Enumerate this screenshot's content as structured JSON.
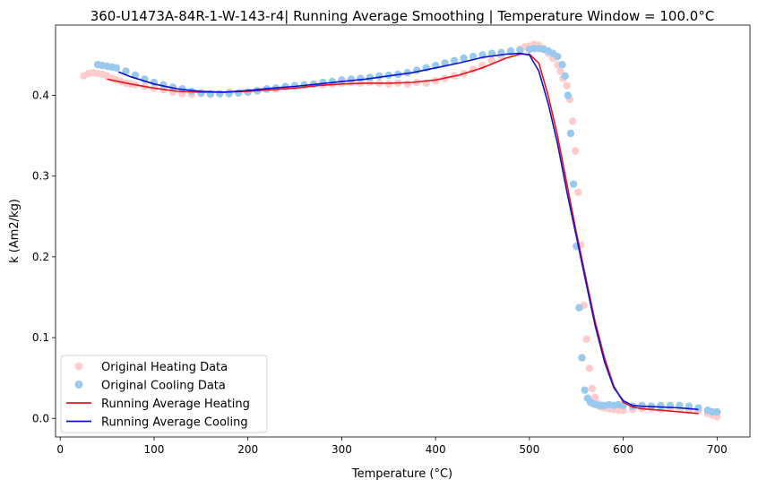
{
  "chart_data": {
    "type": "scatter",
    "title": "360-U1473A-84R-1-W-143-r4| Running Average Smoothing | Temperature Window = 100.0°C",
    "xlabel": "Temperature (°C)",
    "ylabel": "k (Am2/kg)",
    "xlim": [
      -5,
      735
    ],
    "ylim": [
      -0.023,
      0.487
    ],
    "xticks": [
      0,
      100,
      200,
      300,
      400,
      500,
      600,
      700
    ],
    "yticks": [
      0.0,
      0.1,
      0.2,
      0.3,
      0.4
    ],
    "ytick_labels": [
      "0.0",
      "0.1",
      "0.2",
      "0.3",
      "0.4"
    ],
    "grid": false,
    "legend_position": "lower-left",
    "series": [
      {
        "name": "Original Heating Data",
        "kind": "scatter",
        "color": "#ffcccc",
        "x": [
          25,
          30,
          35,
          40,
          45,
          50,
          55,
          60,
          65,
          70,
          75,
          80,
          90,
          100,
          110,
          120,
          130,
          140,
          150,
          160,
          170,
          180,
          190,
          200,
          210,
          220,
          230,
          240,
          250,
          260,
          270,
          280,
          290,
          300,
          310,
          320,
          330,
          340,
          350,
          360,
          370,
          380,
          390,
          400,
          410,
          420,
          430,
          440,
          450,
          460,
          470,
          480,
          490,
          495,
          500,
          505,
          510,
          515,
          520,
          525,
          530,
          533,
          536,
          540,
          543,
          546,
          549,
          552,
          555,
          558,
          561,
          564,
          567,
          570,
          573,
          576,
          580,
          585,
          590,
          595,
          600,
          610,
          620,
          630,
          640,
          650,
          660,
          670,
          680,
          690,
          695,
          700
        ],
        "y": [
          0.424,
          0.427,
          0.428,
          0.427,
          0.426,
          0.424,
          0.421,
          0.419,
          0.417,
          0.415,
          0.414,
          0.413,
          0.411,
          0.409,
          0.407,
          0.404,
          0.402,
          0.401,
          0.402,
          0.401,
          0.402,
          0.404,
          0.403,
          0.404,
          0.405,
          0.407,
          0.408,
          0.41,
          0.411,
          0.412,
          0.414,
          0.413,
          0.414,
          0.415,
          0.416,
          0.415,
          0.416,
          0.415,
          0.414,
          0.415,
          0.414,
          0.416,
          0.415,
          0.418,
          0.421,
          0.424,
          0.427,
          0.432,
          0.437,
          0.443,
          0.448,
          0.453,
          0.457,
          0.46,
          0.461,
          0.463,
          0.462,
          0.458,
          0.452,
          0.446,
          0.438,
          0.43,
          0.421,
          0.412,
          0.395,
          0.368,
          0.331,
          0.28,
          0.215,
          0.14,
          0.098,
          0.062,
          0.037,
          0.026,
          0.018,
          0.014,
          0.013,
          0.012,
          0.011,
          0.01,
          0.01,
          0.011,
          0.012,
          0.012,
          0.011,
          0.012,
          0.011,
          0.01,
          0.009,
          0.006,
          0.004,
          0.002
        ]
      },
      {
        "name": "Original Cooling Data",
        "kind": "scatter",
        "color": "#99c9ef",
        "x": [
          40,
          45,
          50,
          55,
          60,
          70,
          80,
          90,
          100,
          110,
          120,
          130,
          140,
          150,
          160,
          170,
          180,
          190,
          200,
          210,
          220,
          230,
          240,
          250,
          260,
          270,
          280,
          290,
          300,
          310,
          320,
          330,
          340,
          350,
          360,
          370,
          380,
          390,
          400,
          410,
          420,
          430,
          440,
          450,
          460,
          470,
          480,
          490,
          500,
          505,
          510,
          515,
          520,
          525,
          530,
          535,
          538,
          541,
          544,
          547,
          550,
          553,
          556,
          559,
          562,
          565,
          568,
          571,
          574,
          577,
          580,
          585,
          590,
          595,
          600,
          610,
          620,
          630,
          640,
          650,
          660,
          670,
          680,
          690,
          695,
          700
        ],
        "y": [
          0.438,
          0.437,
          0.436,
          0.435,
          0.434,
          0.43,
          0.425,
          0.42,
          0.416,
          0.413,
          0.41,
          0.408,
          0.405,
          0.403,
          0.402,
          0.402,
          0.402,
          0.403,
          0.404,
          0.406,
          0.408,
          0.409,
          0.411,
          0.412,
          0.413,
          0.414,
          0.416,
          0.417,
          0.419,
          0.42,
          0.421,
          0.422,
          0.424,
          0.425,
          0.426,
          0.428,
          0.431,
          0.434,
          0.437,
          0.44,
          0.443,
          0.446,
          0.448,
          0.45,
          0.452,
          0.453,
          0.455,
          0.456,
          0.457,
          0.458,
          0.458,
          0.457,
          0.455,
          0.452,
          0.448,
          0.438,
          0.424,
          0.4,
          0.353,
          0.29,
          0.213,
          0.137,
          0.075,
          0.035,
          0.025,
          0.02,
          0.018,
          0.017,
          0.016,
          0.016,
          0.016,
          0.017,
          0.016,
          0.017,
          0.016,
          0.015,
          0.016,
          0.015,
          0.016,
          0.016,
          0.016,
          0.015,
          0.013,
          0.01,
          0.008,
          0.008
        ]
      },
      {
        "name": "Running Average Heating",
        "kind": "line",
        "color": "#e8141c",
        "x": [
          50,
          75,
          100,
          125,
          150,
          175,
          200,
          225,
          250,
          275,
          300,
          325,
          350,
          375,
          400,
          425,
          450,
          475,
          490,
          500,
          510,
          520,
          530,
          540,
          550,
          560,
          570,
          580,
          590,
          600,
          610,
          620,
          640,
          660,
          680
        ],
        "y": [
          0.42,
          0.414,
          0.409,
          0.405,
          0.404,
          0.404,
          0.405,
          0.407,
          0.409,
          0.412,
          0.414,
          0.415,
          0.415,
          0.416,
          0.419,
          0.425,
          0.434,
          0.446,
          0.451,
          0.451,
          0.44,
          0.4,
          0.35,
          0.29,
          0.23,
          0.175,
          0.12,
          0.075,
          0.04,
          0.02,
          0.014,
          0.012,
          0.01,
          0.008,
          0.006
        ]
      },
      {
        "name": "Running Average Cooling",
        "kind": "line",
        "color": "#0a14d4",
        "x": [
          62,
          75,
          100,
          125,
          150,
          175,
          200,
          225,
          250,
          275,
          300,
          325,
          350,
          375,
          400,
          425,
          450,
          475,
          490,
          500,
          510,
          520,
          530,
          540,
          550,
          560,
          570,
          580,
          590,
          600,
          610,
          620,
          640,
          660,
          680
        ],
        "y": [
          0.429,
          0.423,
          0.414,
          0.408,
          0.405,
          0.404,
          0.406,
          0.409,
          0.411,
          0.414,
          0.417,
          0.42,
          0.424,
          0.428,
          0.434,
          0.44,
          0.447,
          0.451,
          0.452,
          0.45,
          0.43,
          0.39,
          0.34,
          0.28,
          0.225,
          0.17,
          0.115,
          0.07,
          0.038,
          0.022,
          0.016,
          0.015,
          0.014,
          0.013,
          0.011
        ]
      }
    ]
  }
}
